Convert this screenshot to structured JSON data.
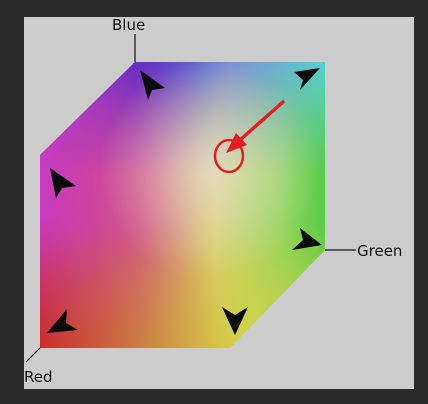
{
  "axes": {
    "blue_label": "Blue",
    "green_label": "Green",
    "red_label": "Red"
  },
  "colors": {
    "background": "#2b2b2b",
    "panel": "#cccccc",
    "highlight": "#e02020",
    "arrow": "#0a0a0a"
  },
  "icons": {
    "vertex_marker": "arrowhead-icon",
    "highlight_marker": "red-arrow-circle-icon"
  }
}
